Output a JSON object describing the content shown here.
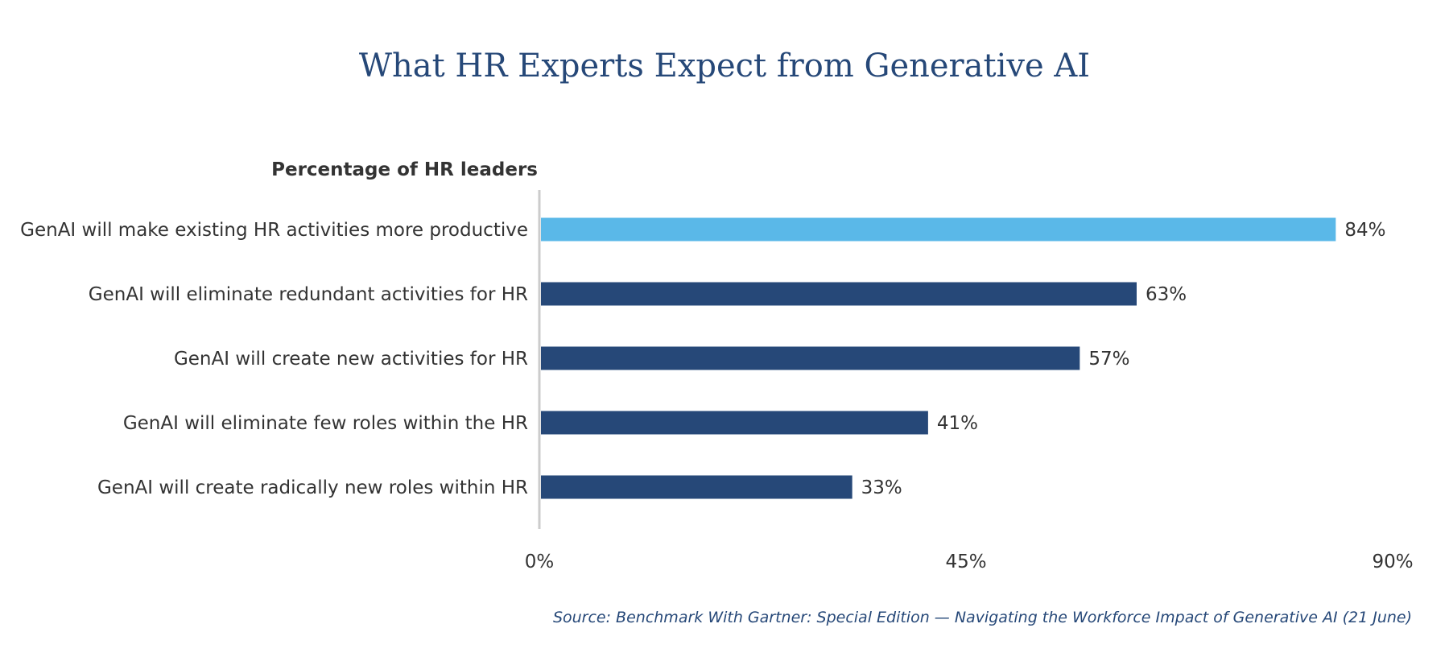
{
  "title": "What HR Experts Expect from Generative AI",
  "source": "Source: Benchmark With Gartner: Special Edition — Navigating the Workforce Impact of Generative AI (21 June)",
  "colors": {
    "title": "#264878",
    "highlight_bar": "#5ab8e8",
    "bar": "#264878",
    "axis_line": "#cccccc",
    "text": "#333333"
  },
  "chart_data": {
    "type": "bar",
    "orientation": "horizontal",
    "categories": [
      "GenAI will make existing HR activities more productive",
      "GenAI will eliminate redundant activities for HR",
      "GenAI will create new activities for HR",
      "GenAI will eliminate few roles within the HR",
      "GenAI will create radically new roles within HR"
    ],
    "values": [
      84,
      63,
      57,
      41,
      33
    ],
    "value_labels": [
      "84%",
      "63%",
      "57%",
      "41%",
      "33%"
    ],
    "highlight_index": 0,
    "title": "What HR Experts Expect from Generative AI",
    "xlabel": "",
    "ylabel": "Percentage of HR leaders",
    "xlim": [
      0,
      90
    ],
    "x_ticks": [
      0,
      45,
      90
    ],
    "x_tick_labels": [
      "0%",
      "45%",
      "90%"
    ],
    "grid": false,
    "legend": "none"
  }
}
